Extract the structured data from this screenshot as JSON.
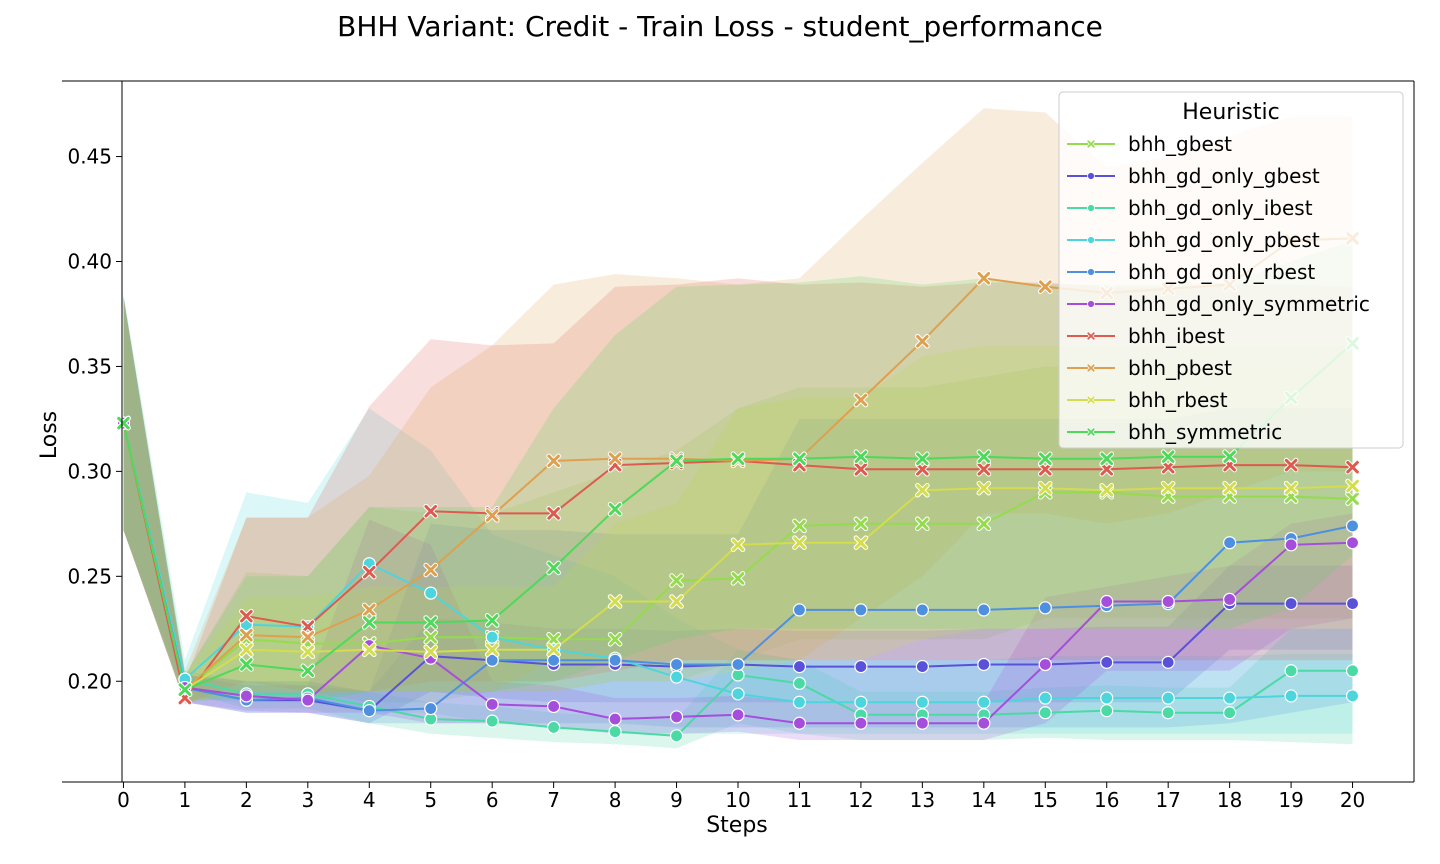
{
  "chart_data": {
    "type": "line",
    "title": "BHH Variant: Credit - Train Loss - student_performance",
    "xlabel": "Steps",
    "ylabel": "Loss",
    "xlim": [
      -1,
      21
    ],
    "ylim": [
      0.152,
      0.486
    ],
    "x": [
      0,
      1,
      2,
      3,
      4,
      5,
      6,
      7,
      8,
      9,
      10,
      11,
      12,
      13,
      14,
      15,
      16,
      17,
      18,
      19,
      20
    ],
    "xticks": [
      "0",
      "1",
      "2",
      "3",
      "4",
      "5",
      "6",
      "7",
      "8",
      "9",
      "10",
      "11",
      "12",
      "13",
      "14",
      "15",
      "16",
      "17",
      "18",
      "19",
      "20"
    ],
    "yticks": [
      "0.20",
      "0.25",
      "0.30",
      "0.35",
      "0.40",
      "0.45"
    ],
    "legend": {
      "title": "Heuristic",
      "placement": "upper right"
    },
    "series": [
      {
        "name": "bhh_gbest",
        "color": "#94dc4e",
        "marker": "x",
        "values": [
          0.323,
          0.196,
          0.22,
          0.218,
          0.218,
          0.221,
          0.221,
          0.22,
          0.22,
          0.248,
          0.249,
          0.274,
          0.275,
          0.275,
          0.275,
          0.29,
          0.29,
          0.288,
          0.288,
          0.288,
          0.287
        ],
        "band_upper": [
          0.383,
          0.203,
          0.252,
          0.25,
          0.283,
          0.28,
          0.28,
          0.29,
          0.3,
          0.31,
          0.33,
          0.34,
          0.34,
          0.34,
          0.345,
          0.35,
          0.35,
          0.35,
          0.35,
          0.35,
          0.35
        ],
        "band_lower": [
          0.272,
          0.19,
          0.195,
          0.195,
          0.19,
          0.19,
          0.195,
          0.195,
          0.2,
          0.2,
          0.21,
          0.22,
          0.22,
          0.22,
          0.22,
          0.23,
          0.23,
          0.23,
          0.23,
          0.23,
          0.23
        ]
      },
      {
        "name": "bhh_gd_only_gbest",
        "color": "#5a51d9",
        "marker": "o",
        "values": [
          0.323,
          0.197,
          0.191,
          0.191,
          0.186,
          0.212,
          0.21,
          0.208,
          0.208,
          0.207,
          0.208,
          0.207,
          0.207,
          0.207,
          0.208,
          0.208,
          0.209,
          0.209,
          0.237,
          0.237,
          0.237
        ],
        "band_upper": [
          0.383,
          0.203,
          0.198,
          0.198,
          0.195,
          0.23,
          0.228,
          0.225,
          0.225,
          0.224,
          0.225,
          0.224,
          0.224,
          0.224,
          0.225,
          0.225,
          0.226,
          0.226,
          0.255,
          0.255,
          0.255
        ],
        "band_lower": [
          0.272,
          0.19,
          0.185,
          0.185,
          0.18,
          0.195,
          0.192,
          0.19,
          0.19,
          0.19,
          0.19,
          0.19,
          0.19,
          0.19,
          0.19,
          0.19,
          0.19,
          0.19,
          0.215,
          0.215,
          0.215
        ]
      },
      {
        "name": "bhh_gd_only_ibest",
        "color": "#4bd9a6",
        "marker": "o",
        "values": [
          0.323,
          0.201,
          0.194,
          0.194,
          0.188,
          0.182,
          0.181,
          0.178,
          0.176,
          0.174,
          0.203,
          0.199,
          0.184,
          0.184,
          0.184,
          0.185,
          0.186,
          0.185,
          0.185,
          0.205,
          0.205
        ],
        "band_upper": [
          0.383,
          0.205,
          0.2,
          0.2,
          0.195,
          0.19,
          0.188,
          0.185,
          0.183,
          0.182,
          0.215,
          0.21,
          0.195,
          0.195,
          0.195,
          0.197,
          0.198,
          0.197,
          0.197,
          0.225,
          0.225
        ],
        "band_lower": [
          0.272,
          0.195,
          0.187,
          0.187,
          0.18,
          0.175,
          0.173,
          0.171,
          0.17,
          0.168,
          0.18,
          0.175,
          0.172,
          0.172,
          0.172,
          0.173,
          0.172,
          0.172,
          0.172,
          0.171,
          0.17
        ]
      },
      {
        "name": "bhh_gd_only_pbest",
        "color": "#4dd5dd",
        "marker": "o",
        "values": [
          0.323,
          0.201,
          0.227,
          0.226,
          0.256,
          0.242,
          0.221,
          0.215,
          0.211,
          0.202,
          0.194,
          0.19,
          0.19,
          0.19,
          0.19,
          0.192,
          0.192,
          0.192,
          0.192,
          0.193,
          0.193
        ],
        "band_upper": [
          0.385,
          0.21,
          0.29,
          0.285,
          0.33,
          0.31,
          0.27,
          0.26,
          0.25,
          0.23,
          0.215,
          0.21,
          0.21,
          0.21,
          0.21,
          0.212,
          0.212,
          0.212,
          0.212,
          0.213,
          0.213
        ],
        "band_lower": [
          0.272,
          0.192,
          0.19,
          0.19,
          0.185,
          0.185,
          0.18,
          0.178,
          0.176,
          0.175,
          0.175,
          0.175,
          0.175,
          0.175,
          0.175,
          0.175,
          0.175,
          0.175,
          0.175,
          0.175,
          0.175
        ]
      },
      {
        "name": "bhh_gd_only_rbest",
        "color": "#4e8fe0",
        "marker": "o",
        "values": [
          0.323,
          0.197,
          0.191,
          0.192,
          0.186,
          0.187,
          0.21,
          0.21,
          0.21,
          0.208,
          0.208,
          0.234,
          0.234,
          0.234,
          0.234,
          0.235,
          0.236,
          0.237,
          0.266,
          0.268,
          0.274
        ],
        "band_upper": [
          0.383,
          0.203,
          0.2,
          0.2,
          0.195,
          0.275,
          0.272,
          0.272,
          0.27,
          0.27,
          0.27,
          0.325,
          0.325,
          0.325,
          0.325,
          0.325,
          0.325,
          0.325,
          0.33,
          0.33,
          0.33
        ],
        "band_lower": [
          0.272,
          0.19,
          0.185,
          0.185,
          0.18,
          0.18,
          0.18,
          0.18,
          0.18,
          0.178,
          0.178,
          0.178,
          0.178,
          0.178,
          0.178,
          0.178,
          0.178,
          0.178,
          0.18,
          0.185,
          0.19
        ]
      },
      {
        "name": "bhh_gd_only_symmetric",
        "color": "#a54edb",
        "marker": "o",
        "values": [
          0.323,
          0.197,
          0.193,
          0.191,
          0.217,
          0.211,
          0.189,
          0.188,
          0.182,
          0.183,
          0.184,
          0.18,
          0.18,
          0.18,
          0.18,
          0.208,
          0.238,
          0.238,
          0.239,
          0.265,
          0.266
        ],
        "band_upper": [
          0.383,
          0.203,
          0.2,
          0.198,
          0.277,
          0.265,
          0.2,
          0.198,
          0.192,
          0.192,
          0.193,
          0.19,
          0.19,
          0.19,
          0.19,
          0.24,
          0.245,
          0.25,
          0.255,
          0.275,
          0.28
        ],
        "band_lower": [
          0.272,
          0.19,
          0.186,
          0.185,
          0.185,
          0.18,
          0.18,
          0.178,
          0.175,
          0.175,
          0.176,
          0.172,
          0.172,
          0.172,
          0.172,
          0.18,
          0.205,
          0.205,
          0.205,
          0.225,
          0.23
        ]
      },
      {
        "name": "bhh_ibest",
        "color": "#dd5a4f",
        "marker": "x",
        "values": [
          0.323,
          0.192,
          0.231,
          0.226,
          0.252,
          0.281,
          0.28,
          0.28,
          0.303,
          0.304,
          0.305,
          0.303,
          0.301,
          0.301,
          0.301,
          0.301,
          0.301,
          0.302,
          0.303,
          0.303,
          0.302
        ],
        "band_upper": [
          0.383,
          0.2,
          0.278,
          0.278,
          0.331,
          0.363,
          0.36,
          0.361,
          0.388,
          0.389,
          0.392,
          0.389,
          0.39,
          0.388,
          0.39,
          0.39,
          0.388,
          0.388,
          0.389,
          0.389,
          0.388
        ],
        "band_lower": [
          0.272,
          0.189,
          0.2,
          0.195,
          0.195,
          0.2,
          0.2,
          0.2,
          0.205,
          0.21,
          0.21,
          0.21,
          0.21,
          0.21,
          0.21,
          0.21,
          0.21,
          0.21,
          0.21,
          0.21,
          0.21
        ]
      },
      {
        "name": "bhh_pbest",
        "color": "#dea04f",
        "marker": "x",
        "values": [
          0.323,
          0.196,
          0.222,
          0.221,
          0.234,
          0.253,
          0.279,
          0.305,
          0.306,
          0.306,
          0.305,
          0.306,
          0.334,
          0.362,
          0.392,
          0.388,
          0.385,
          0.387,
          0.389,
          0.41,
          0.411
        ],
        "band_upper": [
          0.383,
          0.205,
          0.278,
          0.278,
          0.298,
          0.34,
          0.36,
          0.389,
          0.394,
          0.392,
          0.389,
          0.392,
          0.42,
          0.447,
          0.473,
          0.471,
          0.445,
          0.45,
          0.46,
          0.469,
          0.469
        ],
        "band_lower": [
          0.272,
          0.19,
          0.195,
          0.193,
          0.195,
          0.195,
          0.195,
          0.21,
          0.21,
          0.21,
          0.21,
          0.21,
          0.23,
          0.25,
          0.28,
          0.28,
          0.275,
          0.28,
          0.29,
          0.3,
          0.3
        ]
      },
      {
        "name": "bhh_rbest",
        "color": "#d3dd4e",
        "marker": "x",
        "values": [
          0.323,
          0.196,
          0.215,
          0.214,
          0.215,
          0.214,
          0.215,
          0.215,
          0.238,
          0.238,
          0.265,
          0.266,
          0.266,
          0.291,
          0.292,
          0.292,
          0.291,
          0.292,
          0.292,
          0.292,
          0.293
        ],
        "band_upper": [
          0.383,
          0.203,
          0.24,
          0.24,
          0.245,
          0.245,
          0.245,
          0.245,
          0.275,
          0.285,
          0.33,
          0.335,
          0.335,
          0.355,
          0.36,
          0.36,
          0.36,
          0.36,
          0.36,
          0.36,
          0.36
        ],
        "band_lower": [
          0.272,
          0.19,
          0.195,
          0.195,
          0.195,
          0.195,
          0.195,
          0.195,
          0.2,
          0.2,
          0.205,
          0.21,
          0.21,
          0.22,
          0.225,
          0.225,
          0.225,
          0.225,
          0.225,
          0.225,
          0.225
        ]
      },
      {
        "name": "bhh_symmetric",
        "color": "#4fd95a",
        "marker": "x",
        "values": [
          0.323,
          0.196,
          0.208,
          0.205,
          0.228,
          0.228,
          0.229,
          0.254,
          0.282,
          0.305,
          0.306,
          0.306,
          0.307,
          0.306,
          0.307,
          0.306,
          0.306,
          0.307,
          0.307,
          0.335,
          0.361
        ],
        "band_upper": [
          0.383,
          0.203,
          0.25,
          0.25,
          0.283,
          0.283,
          0.283,
          0.33,
          0.365,
          0.388,
          0.389,
          0.39,
          0.393,
          0.389,
          0.392,
          0.389,
          0.389,
          0.389,
          0.39,
          0.4,
          0.41
        ],
        "band_lower": [
          0.272,
          0.19,
          0.192,
          0.19,
          0.195,
          0.195,
          0.195,
          0.2,
          0.21,
          0.22,
          0.225,
          0.225,
          0.225,
          0.225,
          0.225,
          0.225,
          0.225,
          0.225,
          0.225,
          0.235,
          0.26
        ]
      }
    ]
  }
}
